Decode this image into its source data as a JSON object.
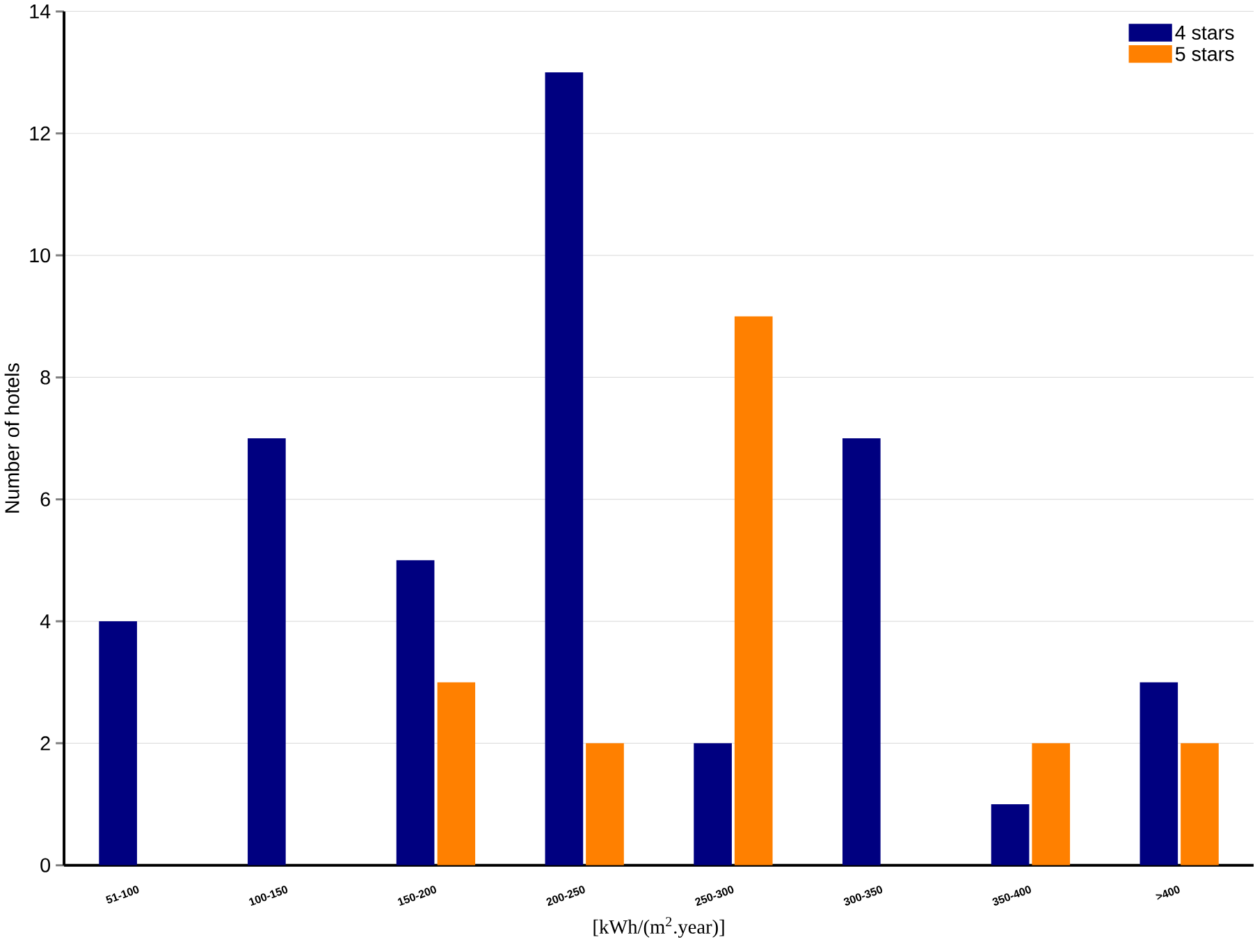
{
  "chart_data": {
    "type": "bar",
    "xlabel": "[kWh/(m$^{2}$.year)]",
    "ylabel": "Number of hotels",
    "categories": [
      "51-100",
      "100-150",
      "150-200",
      "200-250",
      "250-300",
      "300-350",
      "350-400",
      ">400"
    ],
    "series": [
      {
        "name": "4 stars",
        "color": "#000080",
        "values": [
          4,
          7,
          5,
          13,
          2,
          7,
          1,
          3
        ]
      },
      {
        "name": "5 stars",
        "color": "#ff8000",
        "values": [
          null,
          null,
          3,
          2,
          9,
          null,
          2,
          2
        ]
      }
    ],
    "ylim": [
      0,
      14
    ],
    "yticks": [
      0,
      2,
      4,
      6,
      8,
      10,
      12,
      14
    ],
    "grid": "y",
    "legend": "top right"
  }
}
